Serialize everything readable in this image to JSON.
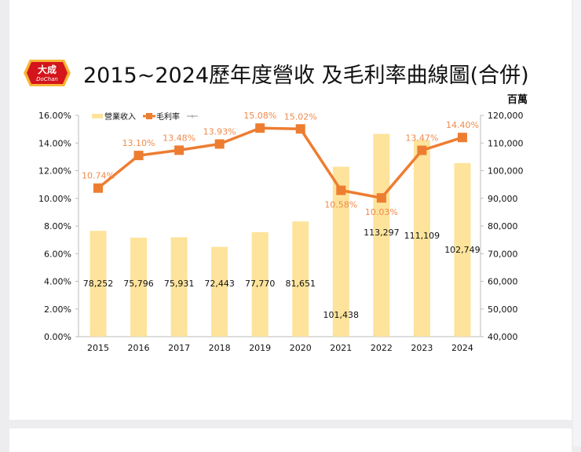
{
  "header": {
    "title": "2015~2024歷年度營收 及毛利率曲線圖(合併)",
    "logo_text": "大成 DoChan"
  },
  "colors": {
    "bar": "#fde39b",
    "line": "#ed7d31",
    "line_label": "#f08a4b",
    "text": "#111111"
  },
  "chart_data": {
    "type": "bar+line",
    "categories": [
      "2015",
      "2016",
      "2017",
      "2018",
      "2019",
      "2020",
      "2021",
      "2022",
      "2023",
      "2024"
    ],
    "series": [
      {
        "name": "營業收入",
        "type": "bar",
        "axis": "right",
        "values": [
          78252,
          75796,
          75931,
          72443,
          77770,
          81651,
          101438,
          113297,
          111109,
          102749
        ],
        "labels": [
          "78,252",
          "75,796",
          "75,931",
          "72,443",
          "77,770",
          "81,651",
          "101,438",
          "113,297",
          "111,109",
          "102,749"
        ]
      },
      {
        "name": "毛利率",
        "type": "line",
        "axis": "left",
        "values": [
          10.74,
          13.1,
          13.48,
          13.93,
          15.08,
          15.02,
          10.58,
          10.03,
          13.47,
          14.4
        ],
        "labels": [
          "10.74%",
          "13.10%",
          "13.48%",
          "13.93%",
          "15.08%",
          "15.02%",
          "10.58%",
          "10.03%",
          "13.47%",
          "14.40%"
        ]
      }
    ],
    "left_axis": {
      "ylim": [
        0,
        16
      ],
      "ticks": [
        "0.00%",
        "2.00%",
        "4.00%",
        "6.00%",
        "8.00%",
        "10.00%",
        "12.00%",
        "14.00%",
        "16.00%"
      ]
    },
    "right_axis": {
      "unit": "百萬",
      "ylim": [
        40000,
        120000
      ],
      "ticks": [
        "40,000",
        "50,000",
        "60,000",
        "70,000",
        "80,000",
        "90,000",
        "100,000",
        "110,000",
        "120,000"
      ]
    },
    "legend": {
      "placement": "top-left",
      "items": [
        "營業收入",
        "毛利率",
        ""
      ]
    },
    "grid": false
  }
}
